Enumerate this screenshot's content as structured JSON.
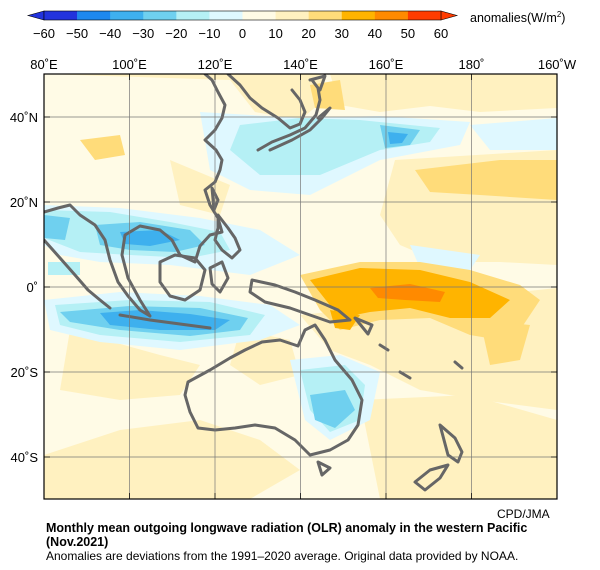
{
  "colorbar": {
    "ticks": [
      "−60",
      "−50",
      "−40",
      "−30",
      "−20",
      "−10",
      "0",
      "10",
      "20",
      "30",
      "40",
      "50",
      "60"
    ],
    "units_main": "anomalies(W/m",
    "units_sup": "2",
    "units_end": ")",
    "colors": [
      "#2233dd",
      "#1e88ee",
      "#3eb0ee",
      "#6fd0ef",
      "#b5f0f5",
      "#dff8ff",
      "#fffbe6",
      "#fff1c0",
      "#ffdc7a",
      "#ffb400",
      "#ff8a00",
      "#ff3c00"
    ]
  },
  "map": {
    "lon_labels": [
      "80˚E",
      "100˚E",
      "120˚E",
      "140˚E",
      "160˚E",
      "180˚",
      "160˚W"
    ],
    "lat_labels": [
      "40˚N",
      "20˚N",
      "0˚",
      "20˚S",
      "40˚S"
    ],
    "background_color": "#fffbe6",
    "coast_color": "#666666"
  },
  "credit": "CPD/JMA",
  "caption": {
    "title": "Monthly mean outgoing longwave radiation (OLR) anomaly in the western Pacific (Nov.2021)",
    "note": "Anomalies are deviations from the 1991–2020 average. Original data provided by NOAA."
  }
}
